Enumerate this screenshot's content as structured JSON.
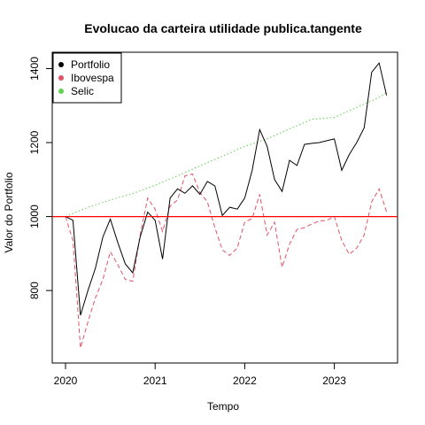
{
  "chart_data": {
    "type": "line",
    "title": "Evolucao da carteira utilidade publica.tangente",
    "xlabel": "Tempo",
    "ylabel": "Valor do Portfolio",
    "xlim": [
      2020.0,
      2023.75
    ],
    "ylim": [
      620,
      1445
    ],
    "x_ticks": [
      2020,
      2021,
      2022,
      2023
    ],
    "x_tick_labels": [
      "2020",
      "2021",
      "2022",
      "2023"
    ],
    "y_ticks": [
      800,
      1000,
      1200,
      1400
    ],
    "y_tick_labels": [
      "800",
      "1000",
      "1200",
      "1400"
    ],
    "legend_position": "top-left",
    "reference_line": {
      "y": 1000,
      "color": "#ff0000"
    },
    "colors": {
      "Portfolio": "#000000",
      "Ibovespa": "#df536b",
      "Selic": "#61d04f"
    },
    "series": [
      {
        "name": "Portfolio",
        "style": "solid",
        "x": [
          2020.0,
          2020.083,
          2020.167,
          2020.25,
          2020.333,
          2020.417,
          2020.5,
          2020.583,
          2020.667,
          2020.75,
          2020.833,
          2020.917,
          2021.0,
          2021.083,
          2021.167,
          2021.25,
          2021.333,
          2021.417,
          2021.5,
          2021.583,
          2021.667,
          2021.75,
          2021.833,
          2021.917,
          2022.0,
          2022.083,
          2022.167,
          2022.25,
          2022.333,
          2022.417,
          2022.5,
          2022.583,
          2022.667,
          2022.75,
          2022.833,
          2022.917,
          2023.0,
          2023.083,
          2023.167,
          2023.25,
          2023.333,
          2023.417,
          2023.5,
          2023.583
        ],
        "values": [
          1000,
          990,
          733,
          800,
          860,
          945,
          993,
          930,
          872,
          848,
          945,
          1012,
          990,
          885,
          1050,
          1075,
          1063,
          1083,
          1060,
          1095,
          1083,
          1003,
          1025,
          1020,
          1050,
          1125,
          1235,
          1190,
          1100,
          1068,
          1152,
          1138,
          1195,
          1198,
          1200,
          1205,
          1210,
          1125,
          1168,
          1200,
          1240,
          1390,
          1415,
          1328
        ]
      },
      {
        "name": "Ibovespa",
        "style": "dashed",
        "x": [
          2020.0,
          2020.083,
          2020.167,
          2020.25,
          2020.333,
          2020.417,
          2020.5,
          2020.583,
          2020.667,
          2020.75,
          2020.833,
          2020.917,
          2021.0,
          2021.083,
          2021.167,
          2021.25,
          2021.333,
          2021.417,
          2021.5,
          2021.583,
          2021.667,
          2021.75,
          2021.833,
          2021.917,
          2022.0,
          2022.083,
          2022.167,
          2022.25,
          2022.333,
          2022.417,
          2022.5,
          2022.583,
          2022.667,
          2022.75,
          2022.833,
          2022.917,
          2023.0,
          2023.083,
          2023.167,
          2023.25,
          2023.333,
          2023.417,
          2023.5,
          2023.583
        ],
        "values": [
          1000,
          935,
          645,
          715,
          780,
          830,
          905,
          870,
          830,
          825,
          950,
          1050,
          1020,
          960,
          1028,
          1045,
          1110,
          1115,
          1065,
          1040,
          970,
          910,
          895,
          915,
          985,
          995,
          1060,
          950,
          985,
          863,
          925,
          965,
          970,
          980,
          988,
          990,
          1000,
          935,
          898,
          915,
          950,
          1040,
          1075,
          1013
        ]
      },
      {
        "name": "Selic",
        "style": "dotted",
        "x": [
          2020.0,
          2020.25,
          2020.5,
          2020.75,
          2021.0,
          2021.25,
          2021.5,
          2021.75,
          2022.0,
          2022.25,
          2022.5,
          2022.75,
          2023.0,
          2023.25,
          2023.5,
          2023.583
        ],
        "values": [
          1000,
          1025,
          1045,
          1062,
          1085,
          1110,
          1137,
          1163,
          1190,
          1210,
          1237,
          1263,
          1268,
          1295,
          1322,
          1335
        ]
      }
    ]
  }
}
